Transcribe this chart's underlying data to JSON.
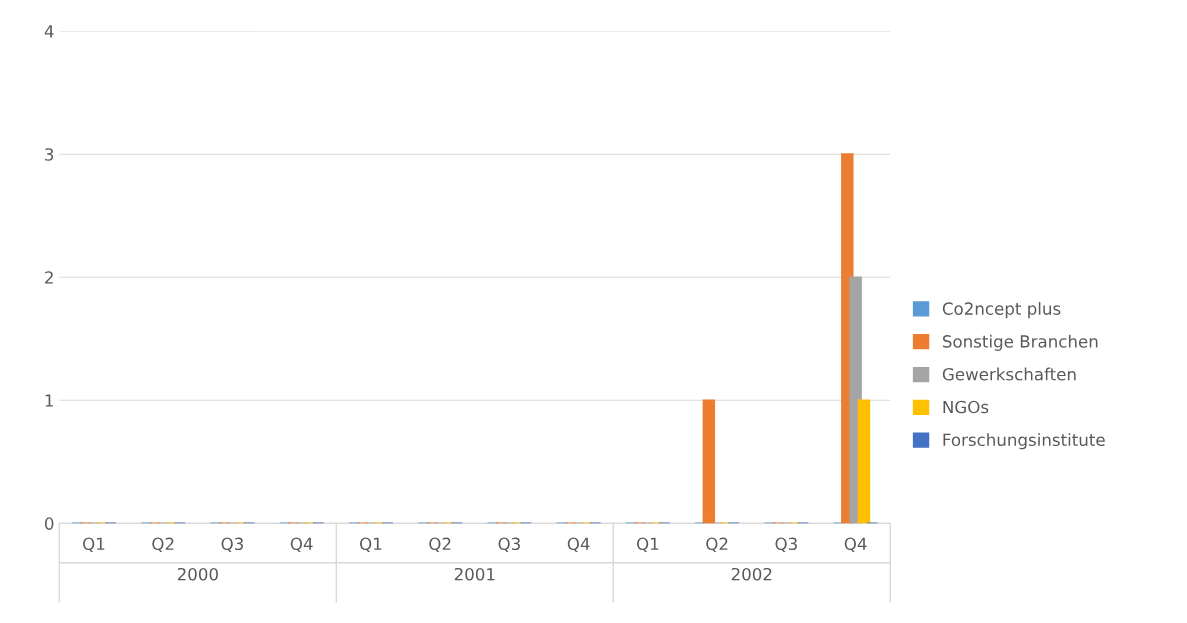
{
  "chart_data": {
    "type": "bar",
    "categories": [
      "Q1",
      "Q2",
      "Q3",
      "Q4",
      "Q1",
      "Q2",
      "Q3",
      "Q4",
      "Q1",
      "Q2",
      "Q3",
      "Q4"
    ],
    "series": [
      {
        "name": "Co2ncept plus",
        "color": "#5b9bd5",
        "values": [
          0,
          0,
          0,
          0,
          0,
          0,
          0,
          0,
          0,
          0,
          0,
          0
        ]
      },
      {
        "name": "Sonstige Branchen",
        "color": "#ed7d31",
        "values": [
          0,
          0,
          0,
          0,
          0,
          0,
          0,
          0,
          0,
          1,
          0,
          3
        ]
      },
      {
        "name": "Gewerkschaften",
        "color": "#a5a5a5",
        "values": [
          0,
          0,
          0,
          0,
          0,
          0,
          0,
          0,
          0,
          0,
          0,
          2
        ]
      },
      {
        "name": "NGOs",
        "color": "#ffc000",
        "values": [
          0,
          0,
          0,
          0,
          0,
          0,
          0,
          0,
          0,
          0,
          0,
          1
        ]
      },
      {
        "name": "Forschungsinstitute",
        "color": "#4472c4",
        "values": [
          0,
          0,
          0,
          0,
          0,
          0,
          0,
          0,
          0,
          0,
          0,
          0
        ]
      }
    ],
    "annotations": [
      "2000",
      "2001",
      "2002"
    ],
    "ylim": [
      0,
      4
    ],
    "yticks": [
      0,
      1,
      2,
      3,
      4
    ],
    "grid": "y",
    "legend": "right"
  }
}
